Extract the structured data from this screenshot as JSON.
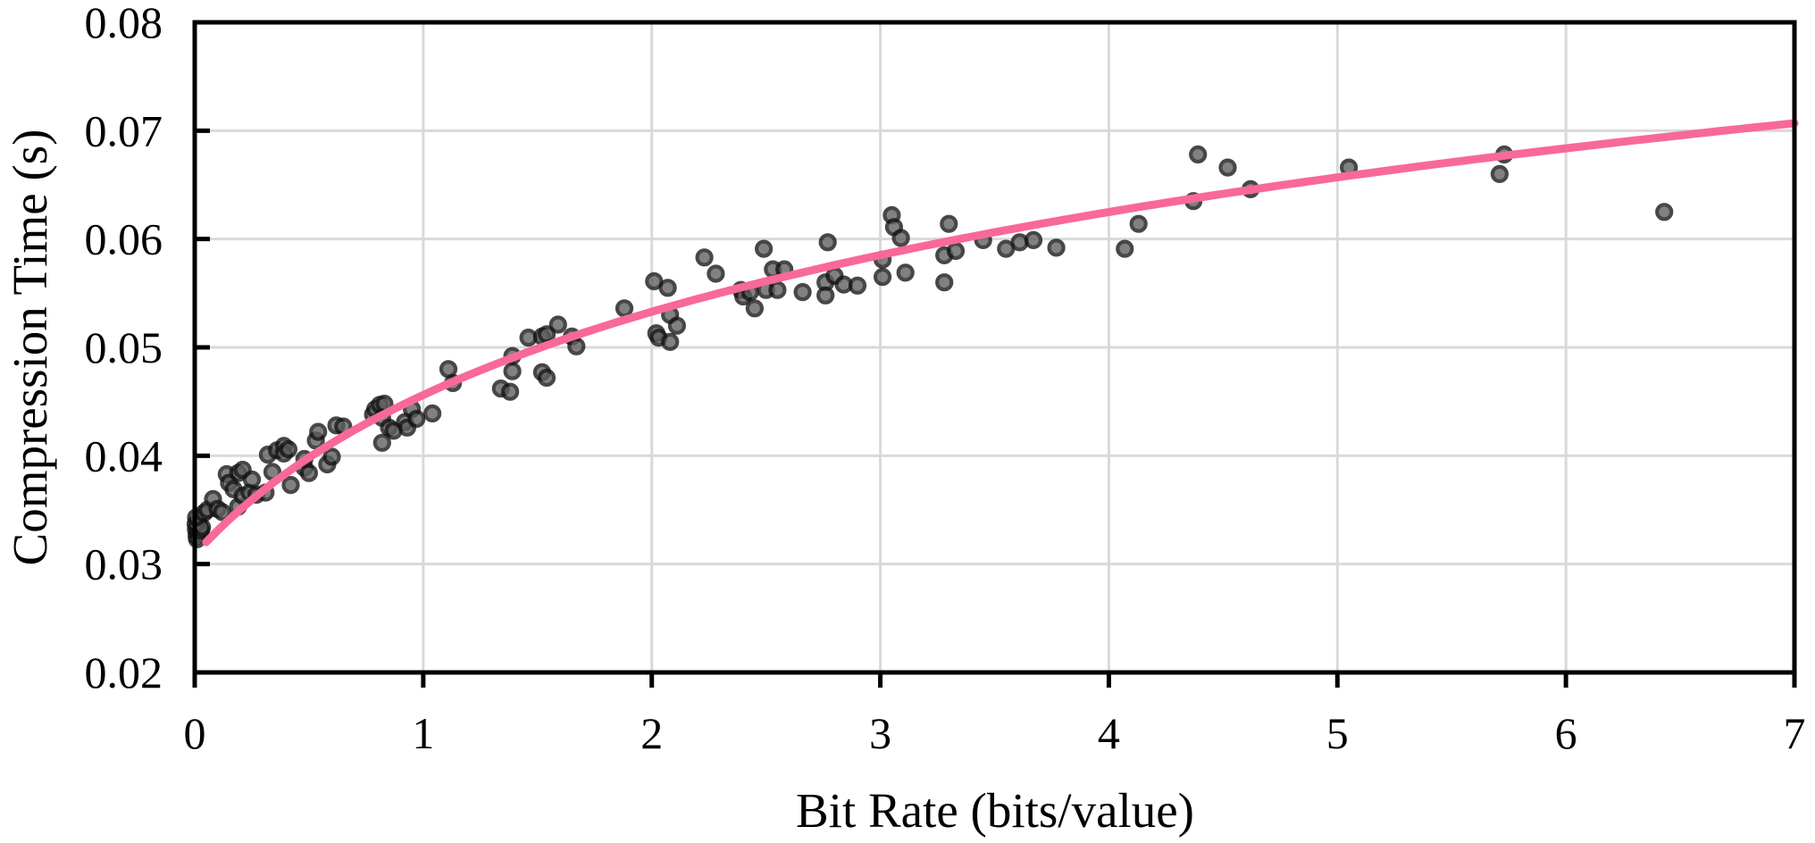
{
  "chart_data": {
    "type": "scatter",
    "title": "",
    "xlabel": "Bit Rate (bits/value)",
    "ylabel": "Compression Time (s)",
    "xlim": [
      0,
      7
    ],
    "ylim": [
      0.02,
      0.08
    ],
    "x_ticks": [
      0,
      1,
      2,
      3,
      4,
      5,
      6,
      7
    ],
    "x_tick_labels": [
      "0",
      "1",
      "2",
      "3",
      "4",
      "5",
      "6",
      "7"
    ],
    "y_ticks": [
      0.02,
      0.03,
      0.04,
      0.05,
      0.06,
      0.07,
      0.08
    ],
    "y_tick_labels": [
      "0.02",
      "0.03",
      "0.04",
      "0.05",
      "0.06",
      "0.07",
      "0.08"
    ],
    "grid": true,
    "legend_position": "none",
    "colors": {
      "trendline": "#F8689B",
      "marker_fill": "#5e5e5e",
      "marker_stroke": "#141414",
      "gridline": "#d9d9d9",
      "axis_frame": "#000000",
      "background": "#ffffff"
    },
    "series": [
      {
        "name": "compression-time-samples",
        "type": "scatter",
        "marker": {
          "shape": "circle",
          "radius": 8,
          "stroke_width": 4.2,
          "opacity": 0.78
        },
        "points": [
          [
            0.005,
            0.0332
          ],
          [
            0.008,
            0.0326
          ],
          [
            0.012,
            0.033
          ],
          [
            0.018,
            0.0335
          ],
          [
            0.022,
            0.0328
          ],
          [
            0.01,
            0.0323
          ],
          [
            0.028,
            0.0331
          ],
          [
            0.016,
            0.0339
          ],
          [
            0.004,
            0.0337
          ],
          [
            0.032,
            0.0334
          ],
          [
            0.006,
            0.0343
          ],
          [
            0.04,
            0.0347
          ],
          [
            0.055,
            0.035
          ],
          [
            0.08,
            0.036
          ],
          [
            0.1,
            0.0351
          ],
          [
            0.12,
            0.0348
          ],
          [
            0.14,
            0.0383
          ],
          [
            0.15,
            0.0375
          ],
          [
            0.17,
            0.0369
          ],
          [
            0.19,
            0.0384
          ],
          [
            0.19,
            0.0353
          ],
          [
            0.21,
            0.0387
          ],
          [
            0.21,
            0.0363
          ],
          [
            0.24,
            0.0366
          ],
          [
            0.25,
            0.0378
          ],
          [
            0.27,
            0.0364
          ],
          [
            0.31,
            0.0366
          ],
          [
            0.32,
            0.0401
          ],
          [
            0.34,
            0.0385
          ],
          [
            0.36,
            0.0405
          ],
          [
            0.39,
            0.0409
          ],
          [
            0.39,
            0.0402
          ],
          [
            0.41,
            0.0406
          ],
          [
            0.42,
            0.0373
          ],
          [
            0.48,
            0.0389
          ],
          [
            0.48,
            0.0397
          ],
          [
            0.5,
            0.0384
          ],
          [
            0.53,
            0.0414
          ],
          [
            0.54,
            0.0422
          ],
          [
            0.58,
            0.0392
          ],
          [
            0.6,
            0.0399
          ],
          [
            0.62,
            0.0428
          ],
          [
            0.65,
            0.0427
          ],
          [
            0.78,
            0.0438
          ],
          [
            0.79,
            0.0443
          ],
          [
            0.81,
            0.0447
          ],
          [
            0.83,
            0.0448
          ],
          [
            0.82,
            0.0435
          ],
          [
            0.82,
            0.0412
          ],
          [
            0.85,
            0.0426
          ],
          [
            0.87,
            0.0423
          ],
          [
            0.92,
            0.0431
          ],
          [
            0.93,
            0.0426
          ],
          [
            0.95,
            0.0443
          ],
          [
            0.97,
            0.0434
          ],
          [
            1.04,
            0.0439
          ],
          [
            1.11,
            0.048
          ],
          [
            1.13,
            0.0467
          ],
          [
            1.34,
            0.0462
          ],
          [
            1.38,
            0.0459
          ],
          [
            1.39,
            0.0492
          ],
          [
            1.39,
            0.0478
          ],
          [
            1.46,
            0.0509
          ],
          [
            1.52,
            0.051
          ],
          [
            1.54,
            0.0512
          ],
          [
            1.59,
            0.0521
          ],
          [
            1.52,
            0.0477
          ],
          [
            1.54,
            0.0472
          ],
          [
            1.65,
            0.051
          ],
          [
            1.67,
            0.0501
          ],
          [
            1.88,
            0.0536
          ],
          [
            2.01,
            0.0561
          ],
          [
            2.07,
            0.0555
          ],
          [
            2.02,
            0.0513
          ],
          [
            2.03,
            0.0509
          ],
          [
            2.08,
            0.053
          ],
          [
            2.08,
            0.0505
          ],
          [
            2.11,
            0.052
          ],
          [
            2.23,
            0.0583
          ],
          [
            2.28,
            0.0568
          ],
          [
            2.39,
            0.0553
          ],
          [
            2.4,
            0.0547
          ],
          [
            2.43,
            0.0551
          ],
          [
            2.45,
            0.0536
          ],
          [
            2.49,
            0.0591
          ],
          [
            2.5,
            0.0553
          ],
          [
            2.53,
            0.0572
          ],
          [
            2.58,
            0.0572
          ],
          [
            2.55,
            0.0553
          ],
          [
            2.66,
            0.0551
          ],
          [
            2.77,
            0.0597
          ],
          [
            2.76,
            0.056
          ],
          [
            2.8,
            0.0566
          ],
          [
            2.76,
            0.0548
          ],
          [
            2.84,
            0.0558
          ],
          [
            2.9,
            0.0557
          ],
          [
            3.01,
            0.0581
          ],
          [
            3.01,
            0.0565
          ],
          [
            3.05,
            0.0622
          ],
          [
            3.06,
            0.0611
          ],
          [
            3.09,
            0.0601
          ],
          [
            3.11,
            0.0569
          ],
          [
            3.28,
            0.056
          ],
          [
            3.28,
            0.0585
          ],
          [
            3.3,
            0.0614
          ],
          [
            3.33,
            0.0589
          ],
          [
            3.45,
            0.0599
          ],
          [
            3.55,
            0.0591
          ],
          [
            3.61,
            0.0597
          ],
          [
            3.67,
            0.0599
          ],
          [
            3.77,
            0.0592
          ],
          [
            4.07,
            0.0591
          ],
          [
            4.13,
            0.0614
          ],
          [
            4.37,
            0.0635
          ],
          [
            4.39,
            0.0678
          ],
          [
            4.52,
            0.0666
          ],
          [
            4.62,
            0.0646
          ],
          [
            5.05,
            0.0666
          ],
          [
            5.71,
            0.066
          ],
          [
            5.73,
            0.0678
          ],
          [
            6.43,
            0.0625
          ]
        ]
      },
      {
        "name": "logarithmic-trend",
        "type": "line",
        "fit_form": "y = a + b·ln(x + c)",
        "a": 0.0368,
        "b": 0.0166,
        "c": 0.7,
        "x_start": 0.05,
        "x_end": 7.0,
        "stroke_width": 9
      }
    ]
  }
}
